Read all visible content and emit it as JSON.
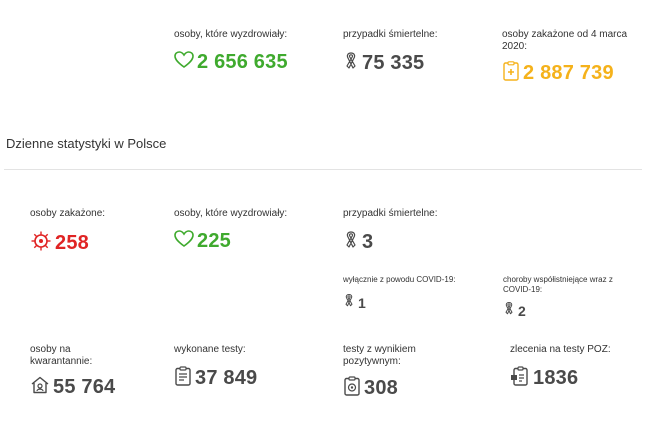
{
  "totals": {
    "recovered": {
      "label": "osoby, które wyzdrowiały:",
      "value": "2 656 635",
      "icon": "heart-icon"
    },
    "deaths": {
      "label": "przypadki śmiertelne:",
      "value": "75 335",
      "icon": "ribbon-icon"
    },
    "infected": {
      "label": "osoby zakażone od 4 marca 2020:",
      "value": "2 887 739",
      "icon": "medical-document-icon"
    }
  },
  "daily": {
    "title": "Dzienne statystyki w Polsce",
    "infected": {
      "label": "osoby zakażone:",
      "value": "258",
      "icon": "virus-icon"
    },
    "recovered": {
      "label": "osoby, które wyzdrowiały:",
      "value": "225",
      "icon": "heart-icon"
    },
    "deaths": {
      "label": "przypadki śmiertelne:",
      "value": "3",
      "icon": "ribbon-icon"
    },
    "deaths_covid_only": {
      "label": "wyłącznie z powodu COVID-19:",
      "value": "1",
      "icon": "ribbon-icon"
    },
    "deaths_comorbid": {
      "label": "choroby współistniejące wraz z COVID-19:",
      "value": "2",
      "icon": "ribbon-icon"
    },
    "quarantine": {
      "label": "osoby na kwarantannie:",
      "value": "55 764",
      "icon": "home-icon"
    },
    "tests": {
      "label": "wykonane testy:",
      "value": "37 849",
      "icon": "clipboard-test-icon"
    },
    "positive_tests": {
      "label": "testy z wynikiem pozytywnym:",
      "value": "308",
      "icon": "clipboard-positive-icon"
    },
    "poz_orders": {
      "label": "zlecenia na testy POZ:",
      "value": "1836",
      "icon": "test-order-icon"
    }
  },
  "colors": {
    "green": "#3faa2e",
    "orange": "#f5b21b",
    "red": "#e02424",
    "gray": "#4a4a4a"
  }
}
